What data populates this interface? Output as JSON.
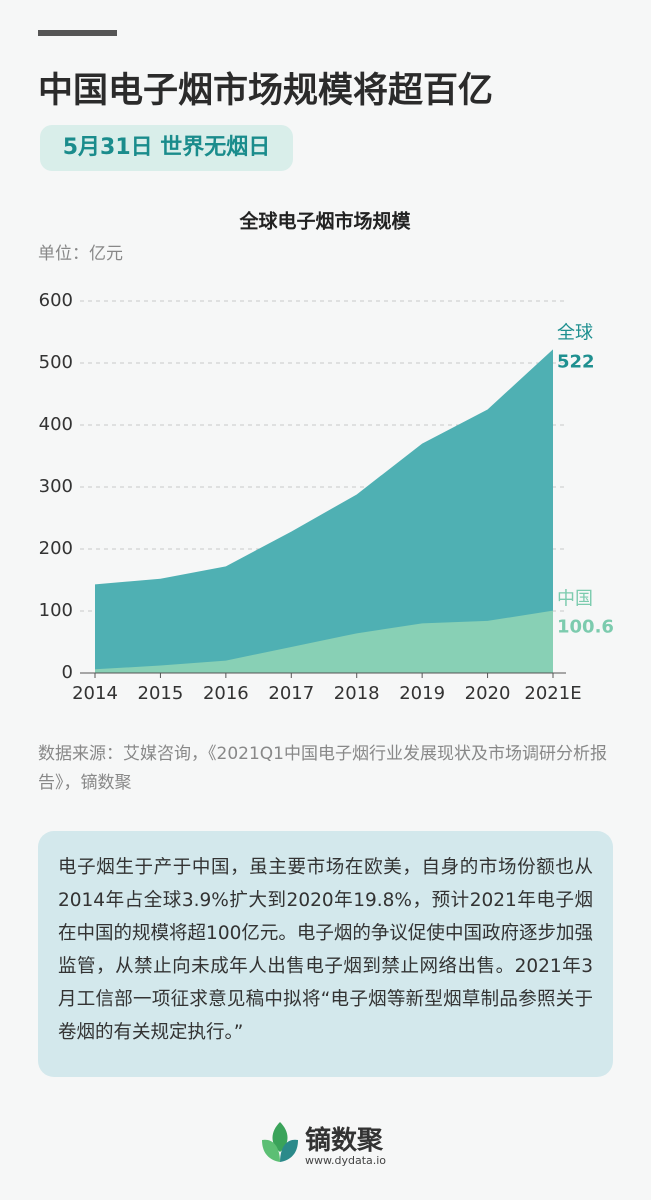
{
  "header": {
    "title": "中国电子烟市场规模将超百亿",
    "subtitle": "5月31日 世界无烟日"
  },
  "chart_data": {
    "type": "area",
    "title": "全球电子烟市场规模",
    "unit": "单位：亿元",
    "categories": [
      "2014",
      "2015",
      "2016",
      "2017",
      "2018",
      "2019",
      "2020",
      "2021E"
    ],
    "series": [
      {
        "name": "全球",
        "color": "#4fb0b3",
        "label_color": "#1f9090",
        "values": [
          143,
          152,
          172,
          228,
          288,
          370,
          425,
          522
        ]
      },
      {
        "name": "中国",
        "color": "#88d0b5",
        "label_color": "#7ccbae",
        "values": [
          6,
          12,
          20,
          42,
          64,
          80,
          84,
          100.6
        ]
      }
    ],
    "ylim": [
      0,
      600
    ],
    "yticks": [
      0,
      100,
      200,
      300,
      400,
      500,
      600
    ],
    "grid": true
  },
  "source": "数据来源：艾媒咨询，《2021Q1中国电子烟行业发展现状及市场调研分析报告》，镝数聚",
  "description": "电子烟生于产于中国，虽主要市场在欧美，自身的市场份额也从2014年占全球3.9%扩大到2020年19.8%，预计2021年电子烟在中国的规模将超100亿元。电子烟的争议促使中国政府逐步加强监管，从禁止向未成年人出售电子烟到禁止网络出售。2021年3月工信部一项征求意见稿中拟将“电子烟等新型烟草制品参照关于卷烟的有关规定执行。”",
  "footer": {
    "brand": "镝数聚",
    "url": "www.dydata.io"
  }
}
